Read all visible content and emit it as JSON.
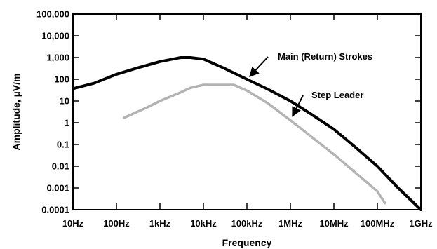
{
  "chart_data": {
    "type": "line",
    "xlabel": "Frequency",
    "ylabel": "Amplitude, µV/m",
    "x_scale": "log",
    "y_scale": "log",
    "xlim": [
      10,
      1000000000
    ],
    "ylim": [
      0.0001,
      100000
    ],
    "x_ticks": [
      {
        "value": 10,
        "label": "10Hz"
      },
      {
        "value": 100,
        "label": "100Hz"
      },
      {
        "value": 1000,
        "label": "1kHz"
      },
      {
        "value": 10000,
        "label": "10kHz"
      },
      {
        "value": 100000,
        "label": "100kHz"
      },
      {
        "value": 1000000,
        "label": "1MHz"
      },
      {
        "value": 10000000,
        "label": "10MHz"
      },
      {
        "value": 100000000,
        "label": "100MHz"
      },
      {
        "value": 1000000000,
        "label": "1GHz"
      }
    ],
    "y_ticks": [
      {
        "value": 100000,
        "label": "100,000"
      },
      {
        "value": 10000,
        "label": "10,000"
      },
      {
        "value": 1000,
        "label": "1,000"
      },
      {
        "value": 100,
        "label": "100"
      },
      {
        "value": 10,
        "label": "10"
      },
      {
        "value": 1,
        "label": "1"
      },
      {
        "value": 0.1,
        "label": "0.1"
      },
      {
        "value": 0.01,
        "label": "0.01"
      },
      {
        "value": 0.001,
        "label": "0.001"
      },
      {
        "value": 0.0001,
        "label": "0.0001"
      }
    ],
    "grid": false,
    "series": [
      {
        "name": "Main (Return) Strokes",
        "color": "#000000",
        "x": [
          10,
          30,
          100,
          300,
          1000,
          3000,
          5000,
          10000,
          30000,
          100000,
          300000,
          1000000,
          3000000,
          10000000,
          30000000,
          100000000,
          300000000,
          1000000000
        ],
        "y": [
          37,
          65,
          170,
          330,
          650,
          1000,
          1000,
          850,
          320,
          100,
          35,
          10,
          2.5,
          0.5,
          0.08,
          0.01,
          0.001,
          0.0001
        ]
      },
      {
        "name": "Step Leader",
        "color": "#b3b3b3",
        "x": [
          150,
          500,
          1000,
          3000,
          5000,
          10000,
          50000,
          100000,
          300000,
          1000000,
          10000000,
          100000000,
          150000000
        ],
        "y": [
          1.7,
          5,
          10,
          25,
          40,
          55,
          55,
          30,
          8,
          1.3,
          0.035,
          0.0007,
          0.0002
        ]
      }
    ],
    "annotations": [
      {
        "text": "Main (Return) Strokes",
        "series": "Main (Return) Strokes",
        "arrow_to": {
          "x": 100000,
          "y": 100
        }
      },
      {
        "text": "Step Leader",
        "series": "Step Leader",
        "arrow_to": {
          "x": 1000000,
          "y": 1.5
        }
      }
    ]
  }
}
